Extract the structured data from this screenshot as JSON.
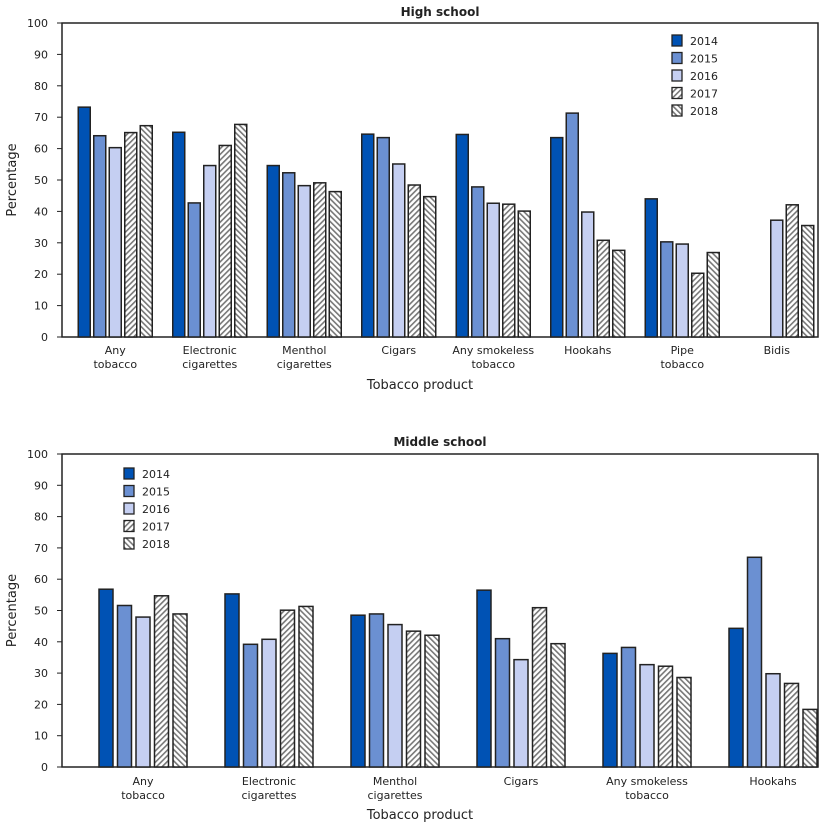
{
  "chart_data": [
    {
      "type": "bar",
      "title": "High school",
      "xlabel": "Tobacco product",
      "ylabel": "Percentage",
      "ylim": [
        0,
        100
      ],
      "yticks": [
        0,
        10,
        20,
        30,
        40,
        50,
        60,
        70,
        80,
        90,
        100
      ],
      "legend_position": "top-right",
      "categories": [
        [
          "Any",
          "tobacco"
        ],
        [
          "Electronic",
          "cigarettes"
        ],
        [
          "Menthol",
          "cigarettes"
        ],
        [
          "Cigars"
        ],
        [
          "Any smokeless",
          "tobacco"
        ],
        [
          "Hookahs"
        ],
        [
          "Pipe",
          "tobacco"
        ],
        [
          "Bidis"
        ]
      ],
      "series": [
        {
          "name": "2014",
          "values": [
            73.2,
            65.2,
            54.6,
            64.6,
            64.5,
            63.5,
            44.0,
            null
          ]
        },
        {
          "name": "2015",
          "values": [
            64.1,
            42.7,
            52.3,
            63.5,
            47.8,
            71.3,
            30.3,
            null
          ]
        },
        {
          "name": "2016",
          "values": [
            60.3,
            54.6,
            48.2,
            55.1,
            42.6,
            39.8,
            29.6,
            37.2
          ]
        },
        {
          "name": "2017",
          "values": [
            65.1,
            61.0,
            49.1,
            48.4,
            42.3,
            30.8,
            20.3,
            42.1
          ]
        },
        {
          "name": "2018",
          "values": [
            67.3,
            67.7,
            46.3,
            44.7,
            40.1,
            27.6,
            26.9,
            35.5
          ]
        }
      ]
    },
    {
      "type": "bar",
      "title": "Middle school",
      "xlabel": "Tobacco product",
      "ylabel": "Percentage",
      "ylim": [
        0,
        100
      ],
      "yticks": [
        0,
        10,
        20,
        30,
        40,
        50,
        60,
        70,
        80,
        90,
        100
      ],
      "legend_position": "top-left",
      "categories": [
        [
          "Any",
          "tobacco"
        ],
        [
          "Electronic",
          "cigarettes"
        ],
        [
          "Menthol",
          "cigarettes"
        ],
        [
          "Cigars"
        ],
        [
          "Any smokeless",
          "tobacco"
        ],
        [
          "Hookahs"
        ]
      ],
      "series": [
        {
          "name": "2014",
          "values": [
            56.8,
            55.3,
            48.5,
            56.5,
            36.3,
            44.3
          ]
        },
        {
          "name": "2015",
          "values": [
            51.6,
            39.2,
            48.9,
            41.0,
            38.2,
            67.0
          ]
        },
        {
          "name": "2016",
          "values": [
            47.9,
            40.8,
            45.5,
            34.3,
            32.7,
            29.8
          ]
        },
        {
          "name": "2017",
          "values": [
            54.7,
            50.1,
            43.4,
            50.9,
            32.2,
            26.7
          ]
        },
        {
          "name": "2018",
          "values": [
            48.9,
            51.3,
            42.1,
            39.4,
            28.6,
            18.4
          ]
        }
      ]
    }
  ],
  "series_styles": [
    {
      "fill": "#0052b4",
      "pattern": "solid"
    },
    {
      "fill": "#6b90d2",
      "pattern": "solid"
    },
    {
      "fill": "#c5cff2",
      "pattern": "solid"
    },
    {
      "fill": "#ffffff",
      "pattern": "hatch-forward"
    },
    {
      "fill": "#ffffff",
      "pattern": "hatch-back"
    }
  ]
}
